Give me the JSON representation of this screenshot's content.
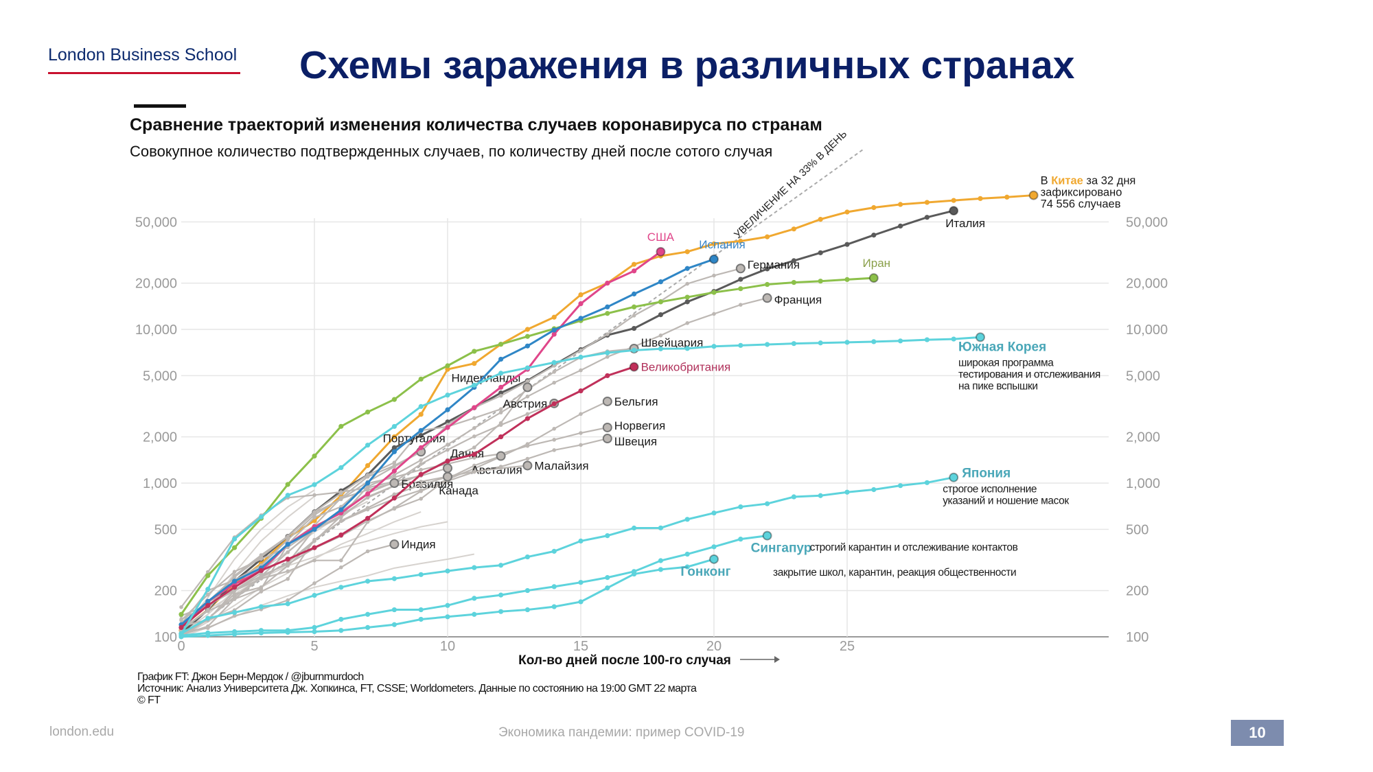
{
  "header": {
    "logo": "London Business School",
    "title": "Схемы заражения в различных странах"
  },
  "footer": {
    "site": "london.edu",
    "center": "Экономика пандемии: пример COVID-19",
    "page": "10"
  },
  "chart_data": {
    "type": "line",
    "title": "Сравнение траекторий изменения количества случаев коронавируса по странам",
    "subtitle": "Совокупное количество подтвержденных случаев, по количеству дней после  сотого случая",
    "xlabel": "Кол-во дней после 100-го случая",
    "ylabel": "",
    "yscale": "log",
    "xlim": [
      0,
      32
    ],
    "ylim": [
      100,
      80000
    ],
    "xticks": [
      0,
      5,
      10,
      15,
      20,
      25
    ],
    "yticks": [
      100,
      200,
      500,
      1000,
      2000,
      5000,
      10000,
      20000,
      50000
    ],
    "ytick_labels": [
      "100",
      "200",
      "500",
      "1,000",
      "2,000",
      "5,000",
      "10,000",
      "20,000",
      "50,000"
    ],
    "grid": true,
    "reference_line": {
      "label": "УВЕЛИЧЕНИЕ НА 33% В ДЕНЬ",
      "daily_growth": 0.33
    },
    "china_note": {
      "prefix": "В ",
      "country": "Китае",
      "suffix": " за 32 дня",
      "line2": "зафиксировано",
      "line3": "74 556 случаев"
    },
    "series": [
      {
        "id": "china",
        "name": "Китай",
        "label": "",
        "color": "#f0a830",
        "values": [
          110,
          150,
          220,
          300,
          440,
          570,
          830,
          1300,
          2000,
          2800,
          5500,
          6000,
          8000,
          10000,
          12000,
          16800,
          20000,
          26500,
          30000,
          32000,
          36000,
          37500,
          40000,
          45000,
          52000,
          58000,
          62000,
          65000,
          67000,
          69000,
          71000,
          72500,
          74556
        ]
      },
      {
        "id": "italy",
        "name": "Италия",
        "label": "Италия",
        "color": "#5a5a5a",
        "values": [
          105,
          150,
          230,
          320,
          450,
          650,
          890,
          1130,
          1700,
          2040,
          2500,
          3090,
          3860,
          4640,
          5880,
          7380,
          9170,
          10150,
          12460,
          15110,
          17660,
          21160,
          24750,
          27980,
          31510,
          35710,
          41040,
          47020,
          53580,
          59140
        ]
      },
      {
        "id": "germany",
        "name": "Германия",
        "label": "Германия",
        "color": "#bdb8b4",
        "values": [
          130,
          160,
          200,
          260,
          400,
          530,
          800,
          1100,
          1300,
          1600,
          2400,
          3100,
          3700,
          4600,
          5800,
          7300,
          9300,
          12300,
          15300,
          19800,
          22400,
          24900
        ]
      },
      {
        "id": "france",
        "name": "Франция",
        "label": "Франция",
        "color": "#bdb8b4",
        "values": [
          100,
          130,
          190,
          210,
          290,
          420,
          610,
          950,
          1130,
          1410,
          1780,
          2280,
          2880,
          3660,
          4500,
          5420,
          6630,
          7730,
          9130,
          10990,
          12610,
          14460,
          16000
        ]
      },
      {
        "id": "switzerland",
        "name": "Швейцария",
        "label": "Швейцария",
        "color": "#bdb8b4",
        "values": [
          110,
          150,
          250,
          340,
          450,
          650,
          860,
          1130,
          1360,
          2200,
          2330,
          2650,
          3030,
          4060,
          5290,
          6580,
          7200,
          7500
        ]
      },
      {
        "id": "netherlands",
        "name": "Нидерланды",
        "label": "Нидерланды",
        "color": "#bdb8b4",
        "values": [
          128,
          188,
          265,
          321,
          382,
          503,
          614,
          804,
          959,
          1135,
          1413,
          1705,
          2460,
          4200
        ]
      },
      {
        "id": "austria",
        "name": "Австрия",
        "label": "Австрия",
        "color": "#bdb8b4",
        "values": [
          102,
          131,
          182,
          246,
          302,
          504,
          655,
          860,
          1018,
          1332,
          1646,
          2013,
          2388,
          2814,
          3300
        ]
      },
      {
        "id": "belgium",
        "name": "Бельгия",
        "label": "Бельгия",
        "color": "#bdb8b4",
        "values": [
          109,
          169,
          200,
          239,
          267,
          314,
          314,
          559,
          689,
          886,
          1058,
          1243,
          1486,
          1795,
          2257,
          2815,
          3400
        ]
      },
      {
        "id": "norway",
        "name": "Норвегия",
        "label": "Норвегия",
        "color": "#bdb8b4",
        "values": [
          113,
          147,
          176,
          205,
          400,
          598,
          702,
          996,
          1090,
          1221,
          1333,
          1463,
          1550,
          1746,
          1914,
          2118,
          2300
        ]
      },
      {
        "id": "sweden",
        "name": "Швеция",
        "label": "Швеция",
        "color": "#bdb8b4",
        "values": [
          137,
          161,
          203,
          248,
          355,
          500,
          599,
          814,
          961,
          1022,
          1103,
          1190,
          1279,
          1439,
          1639,
          1770,
          1950
        ]
      },
      {
        "id": "portugal",
        "name": "Португалия",
        "label": "Португалия",
        "color": "#bdb8b4",
        "values": [
          112,
          169,
          245,
          331,
          448,
          642,
          785,
          1020,
          1280,
          1600
        ]
      },
      {
        "id": "denmark",
        "name": "Дания",
        "label": "Дания",
        "color": "#bdb8b4",
        "values": [
          156,
          264,
          444,
          617,
          804,
          836,
          875,
          933,
          1025,
          1116,
          1250
        ]
      },
      {
        "id": "australia",
        "name": "Австалия",
        "label": "Австалия",
        "color": "#bdb8b4",
        "values": [
          107,
          128,
          200,
          250,
          297,
          377,
          452,
          568,
          681,
          791,
          1071,
          1300,
          1500
        ]
      },
      {
        "id": "malaysia",
        "name": "Малайзия",
        "label": "Малайзия",
        "color": "#bdb8b4",
        "values": [
          117,
          129,
          149,
          197,
          238,
          428,
          566,
          673,
          790,
          900,
          1030,
          1183,
          1250,
          1300
        ]
      },
      {
        "id": "brazil",
        "name": "Бразилия",
        "label": "Бразилия",
        "color": "#bdb8b4",
        "values": [
          121,
          200,
          234,
          291,
          428,
          621,
          793,
          904,
          1000
        ]
      },
      {
        "id": "canada",
        "name": "Канада",
        "label": "Канада",
        "color": "#bdb8b4",
        "values": [
          103,
          117,
          176,
          244,
          304,
          424,
          569,
          690,
          846,
          971,
          1100
        ]
      },
      {
        "id": "india",
        "name": "Индия",
        "label": "Индия",
        "color": "#bdb8b4",
        "values": [
          107,
          114,
          137,
          151,
          173,
          223,
          283,
          360,
          400
        ]
      },
      {
        "id": "iran",
        "name": "Иран",
        "label": "Иран",
        "color": "#8cc04a",
        "values": [
          140,
          250,
          380,
          590,
          980,
          1500,
          2340,
          2900,
          3500,
          4750,
          5800,
          7200,
          8000,
          9000,
          10100,
          11400,
          12700,
          14000,
          15100,
          16200,
          17400,
          18400,
          19600,
          20200,
          20600,
          21100,
          21600
        ]
      },
      {
        "id": "usa",
        "name": "США",
        "label": "США",
        "color": "#e0468a",
        "values": [
          115,
          170,
          220,
          270,
          400,
          520,
          640,
          850,
          1200,
          1700,
          2300,
          3100,
          4200,
          5500,
          9300,
          14700,
          20000,
          24000,
          32000
        ]
      },
      {
        "id": "spain",
        "name": "Испания",
        "label": "Испания",
        "color": "#2f86c6",
        "values": [
          120,
          170,
          230,
          280,
          400,
          500,
          670,
          1000,
          1600,
          2200,
          3000,
          4200,
          6400,
          7800,
          9900,
          11800,
          14000,
          17000,
          20400,
          24900,
          28600
        ]
      },
      {
        "id": "uk",
        "name": "Великобритания",
        "label": "Великобритания",
        "color": "#c0305a",
        "values": [
          115,
          160,
          210,
          270,
          320,
          380,
          460,
          590,
          800,
          1140,
          1390,
          1540,
          2000,
          2630,
          3280,
          3980,
          5000,
          5700
        ]
      },
      {
        "id": "korea",
        "name": "Южная Корея",
        "label": "Южная Корея",
        "color": "#5dd3dc",
        "note": [
          "широкая программа",
          "тестирования и отслеживания",
          "на пике вспышки"
        ],
        "values": [
          104,
          204,
          433,
          602,
          833,
          977,
          1261,
          1766,
          2337,
          3150,
          3736,
          4335,
          5186,
          5621,
          6088,
          6593,
          7041,
          7313,
          7478,
          7513,
          7755,
          7869,
          7979,
          8086,
          8162,
          8236,
          8320,
          8413,
          8565,
          8652,
          8897
        ]
      },
      {
        "id": "japan",
        "name": "Япония",
        "label": "Япония",
        "color": "#5dd3dc",
        "note": [
          "строгое исполнение",
          "указаний и ношение масок"
        ],
        "values": [
          105,
          132,
          144,
          157,
          164,
          186,
          210,
          230,
          239,
          254,
          268,
          282,
          292,
          331,
          360,
          420,
          455,
          510,
          511,
          581,
          639,
          701,
          734,
          814,
          829,
          873,
          907,
          963,
          1007,
          1089
        ]
      },
      {
        "id": "singapore",
        "name": "Сингапур",
        "label": "Сингапур",
        "color": "#5dd3dc",
        "note": [
          "строгий карантин и отслеживание контактов"
        ],
        "values": [
          102,
          106,
          108,
          110,
          110,
          115,
          130,
          140,
          150,
          150,
          160,
          178,
          187,
          200,
          212,
          226,
          243,
          266,
          313,
          345,
          385,
          432,
          455
        ]
      },
      {
        "id": "hongkong",
        "name": "Гонконг",
        "label": "Гонконг",
        "color": "#5dd3dc",
        "note": [
          "закрытие школ, карантин, реакция общественности"
        ],
        "values": [
          100,
          102,
          104,
          106,
          107,
          108,
          110,
          115,
          120,
          130,
          135,
          140,
          146,
          150,
          157,
          169,
          208,
          256,
          274,
          285,
          320
        ]
      }
    ],
    "other_series": [
      {
        "color": "#d6d2ce",
        "values": [
          100,
          150,
          260,
          420,
          600,
          820
        ]
      },
      {
        "color": "#d6d2ce",
        "values": [
          110,
          180,
          320,
          500,
          700,
          900
        ]
      },
      {
        "color": "#d6d2ce",
        "values": [
          105,
          140,
          200,
          270,
          360,
          480,
          620,
          760
        ]
      },
      {
        "color": "#d6d2ce",
        "values": [
          100,
          125,
          160,
          210,
          260,
          320,
          400,
          470,
          560,
          650
        ]
      },
      {
        "color": "#d6d2ce",
        "values": [
          108,
          150,
          190,
          240,
          290,
          330,
          380,
          420,
          470,
          520,
          560
        ]
      },
      {
        "color": "#d6d2ce",
        "values": [
          100,
          115,
          135,
          160,
          185,
          210,
          230,
          250,
          280,
          300,
          320,
          345
        ]
      }
    ],
    "source": {
      "line1": "График FT: Джон Берн-Мердок / @jburnmurdoch",
      "line2": "Источник: Анализ Университета Дж. Хопкинса, FT, CSSE; Worldometers. Данные по состоянию на 19:00 GMT 22 марта",
      "line3": "© FT"
    }
  }
}
